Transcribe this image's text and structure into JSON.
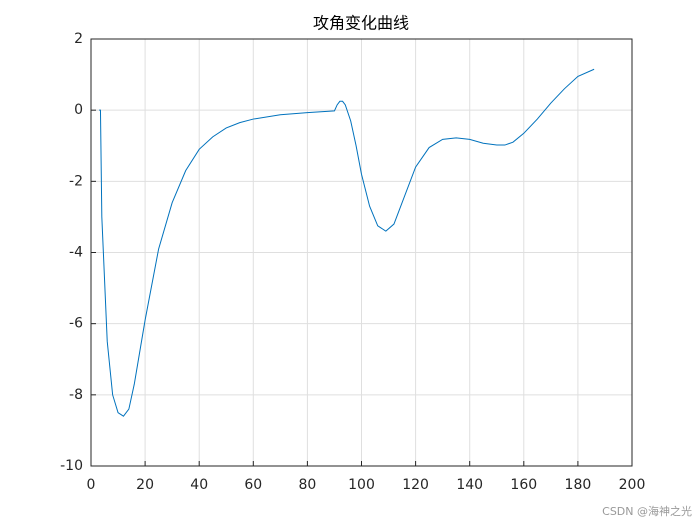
{
  "chart_data": {
    "type": "line",
    "title": "攻角变化曲线",
    "x": [
      3,
      3.5,
      4,
      6,
      8,
      10,
      12,
      14,
      16,
      18,
      20,
      25,
      30,
      35,
      40,
      45,
      50,
      55,
      60,
      70,
      80,
      90,
      91,
      92,
      93,
      94,
      96,
      98,
      100,
      103,
      106,
      109,
      112,
      115,
      120,
      125,
      130,
      135,
      140,
      145,
      150,
      153,
      156,
      160,
      165,
      170,
      175,
      180,
      186
    ],
    "series": [
      {
        "name": "攻角",
        "color": "#0072bd",
        "values": [
          0,
          0,
          -3,
          -6.5,
          -8.0,
          -8.5,
          -8.6,
          -8.4,
          -7.7,
          -6.8,
          -5.9,
          -3.9,
          -2.6,
          -1.7,
          -1.1,
          -0.75,
          -0.5,
          -0.35,
          -0.25,
          -0.13,
          -0.07,
          -0.02,
          0.15,
          0.25,
          0.25,
          0.15,
          -0.3,
          -1.0,
          -1.8,
          -2.7,
          -3.25,
          -3.4,
          -3.2,
          -2.6,
          -1.6,
          -1.05,
          -0.82,
          -0.78,
          -0.82,
          -0.93,
          -0.98,
          -0.98,
          -0.9,
          -0.65,
          -0.25,
          0.2,
          0.6,
          0.95,
          1.15
        ]
      }
    ],
    "xlim": [
      0,
      200
    ],
    "xticks": [
      0,
      20,
      40,
      60,
      80,
      100,
      120,
      140,
      160,
      180,
      200
    ],
    "ylim": [
      -10,
      2
    ],
    "yticks": [
      -10,
      -8,
      -6,
      -4,
      -2,
      0,
      2
    ],
    "grid": true
  },
  "watermark": "CSDN @海神之光"
}
